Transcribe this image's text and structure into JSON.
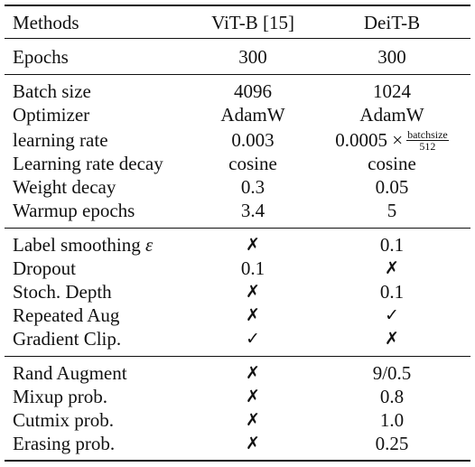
{
  "table": {
    "header": [
      "Methods",
      "ViT-B [15]",
      "DeiT-B"
    ],
    "groups": [
      [
        [
          "Epochs",
          "300",
          "300"
        ]
      ],
      [
        [
          "Batch size",
          "4096",
          "1024"
        ],
        [
          "Optimizer",
          "AdamW",
          "AdamW"
        ],
        [
          "learning rate",
          "0.003",
          "0.0005 ×"
        ],
        [
          "Learning rate decay",
          "cosine",
          "cosine"
        ],
        [
          "Weight decay",
          "0.3",
          "0.05"
        ],
        [
          "Warmup epochs",
          "3.4",
          "5"
        ]
      ],
      [
        [
          "Label smoothing",
          "✗",
          "0.1"
        ],
        [
          "Dropout",
          "0.1",
          "✗"
        ],
        [
          "Stoch. Depth",
          "✗",
          "0.1"
        ],
        [
          "Repeated Aug",
          "✗",
          "✓"
        ],
        [
          "Gradient Clip.",
          "✓",
          "✗"
        ]
      ],
      [
        [
          "Rand Augment",
          "✗",
          "9/0.5"
        ],
        [
          "Mixup prob.",
          "✗",
          "0.8"
        ],
        [
          "Cutmix prob.",
          "✗",
          "1.0"
        ],
        [
          "Erasing prob.",
          "✗",
          "0.25"
        ]
      ]
    ],
    "label_smoothing_symbol": "ε",
    "lr_fraction": {
      "numerator": "batchsize",
      "denominator": "512"
    }
  }
}
